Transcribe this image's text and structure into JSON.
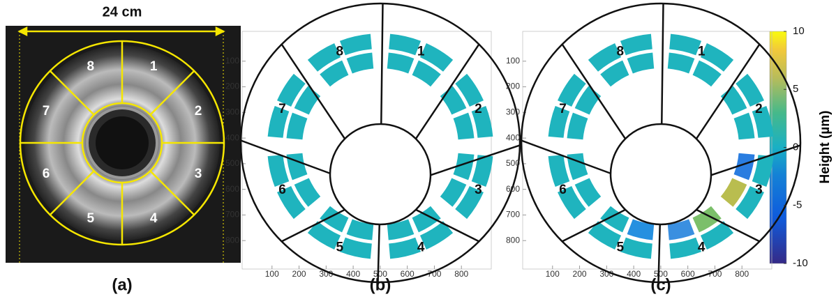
{
  "panel_a": {
    "width_label": "24 cm",
    "segments": [
      "1",
      "2",
      "3",
      "4",
      "5",
      "6",
      "7",
      "8"
    ],
    "caption": "(a)"
  },
  "panels": [
    {
      "caption": "(b)",
      "segments": [
        "1",
        "2",
        "3",
        "4",
        "5",
        "6",
        "7",
        "8"
      ],
      "xlim": [
        0,
        900
      ],
      "ylim": [
        0,
        900
      ],
      "xticks": [
        100,
        200,
        300,
        400,
        500,
        600,
        700,
        800
      ],
      "yticks": [
        100,
        200,
        300,
        400,
        500,
        600,
        700,
        800
      ]
    },
    {
      "caption": "(c)",
      "segments": [
        "1",
        "2",
        "3",
        "4",
        "5",
        "6",
        "7",
        "8"
      ],
      "xlim": [
        0,
        900
      ],
      "ylim": [
        0,
        900
      ],
      "xticks": [
        100,
        200,
        300,
        400,
        500,
        600,
        700,
        800
      ],
      "yticks": [
        100,
        200,
        300,
        400,
        500,
        600,
        700,
        800
      ]
    }
  ],
  "colorbar": {
    "label": "Height (µm)",
    "lim": [
      -10,
      10
    ],
    "ticks": [
      10,
      5,
      0,
      -5,
      -10
    ]
  }
}
